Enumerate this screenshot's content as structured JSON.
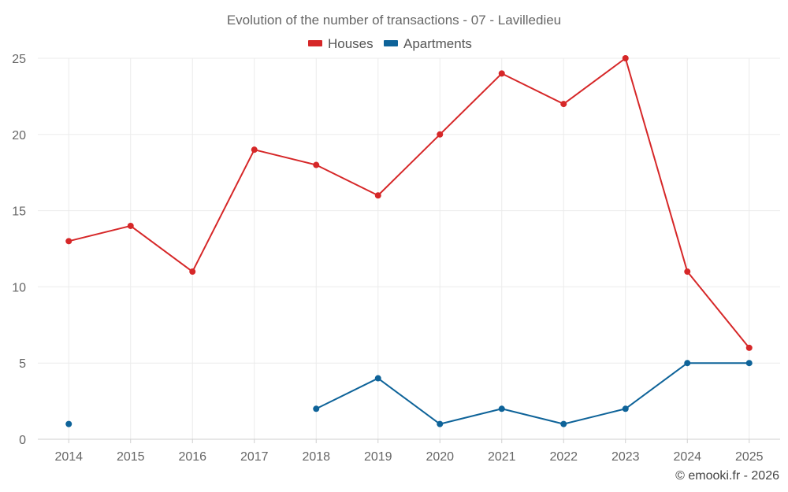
{
  "chart_data": {
    "type": "line",
    "title": "Evolution of the number of transactions - 07 - Lavilledieu",
    "categories": [
      "2014",
      "2015",
      "2016",
      "2017",
      "2018",
      "2019",
      "2020",
      "2021",
      "2022",
      "2023",
      "2024",
      "2025"
    ],
    "series": [
      {
        "name": "Houses",
        "color": "#d62728",
        "values": [
          13,
          14,
          11,
          19,
          18,
          16,
          20,
          24,
          22,
          25,
          11,
          6
        ]
      },
      {
        "name": "Apartments",
        "color": "#0e6399",
        "values": [
          1,
          null,
          null,
          null,
          2,
          4,
          1,
          2,
          1,
          2,
          5,
          5
        ]
      }
    ],
    "ylim": [
      0,
      25
    ],
    "yticks": [
      0,
      5,
      10,
      15,
      20,
      25
    ],
    "xlabel": "",
    "ylabel": "",
    "grid": true,
    "legend_position": "top-center",
    "credit": "© emooki.fr - 2026"
  }
}
